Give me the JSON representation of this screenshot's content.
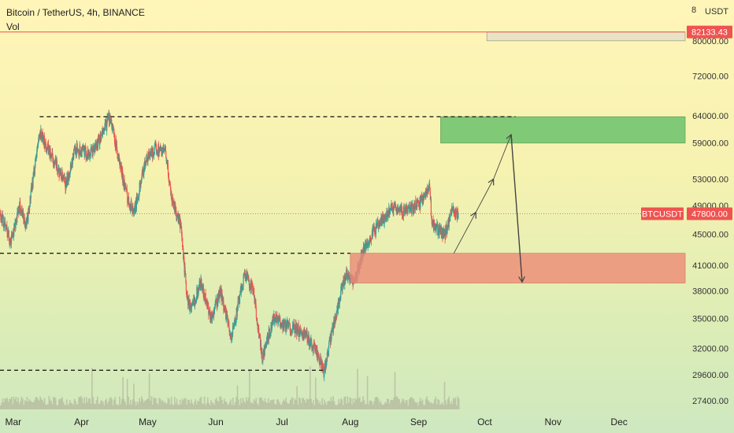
{
  "header": {
    "title": "Bitcoin / TetherUS, 4h, BINANCE",
    "indicator": "Vol"
  },
  "axis": {
    "currency": "USDT",
    "top_partial": "8"
  },
  "colors": {
    "up": "#26a69a",
    "down": "#ef5350",
    "ask_line": "#ef5350",
    "buy_zone": "#6cc26c",
    "sell_zone": "#ee8a78",
    "tag_bg": "#ef5350"
  },
  "tags": {
    "top_price": "82133.43",
    "symbol": "BTCUSDT",
    "last_price": "47800.00"
  },
  "chart_data": {
    "type": "candlestick",
    "title": "Bitcoin / TetherUS, 4h, BINANCE",
    "y_scale": "log",
    "y_ticks": [
      82133.43,
      80000,
      72000,
      64000,
      59000,
      53000,
      49000,
      45000,
      41000,
      38000,
      35000,
      32000,
      29600,
      27400
    ],
    "y_tick_labels": [
      "82133.43",
      "80000.00",
      "72000.00",
      "64000.00",
      "59000.00",
      "53000.00",
      "49000.00",
      "45000.00",
      "41000.00",
      "38000.00",
      "35000.00",
      "32000.00",
      "29600.00",
      "27400.00"
    ],
    "x_ticks": [
      "Mar",
      "Apr",
      "May",
      "Jun",
      "Jul",
      "Aug",
      "Sep",
      "Oct",
      "Nov",
      "Dec"
    ],
    "x_start": "2021-02-23",
    "x_end": "2021-12-31",
    "series": [
      {
        "price_path": [
          [
            "2021-02-23",
            48000
          ],
          [
            "2021-02-28",
            44000
          ],
          [
            "2021-03-04",
            49000
          ],
          [
            "2021-03-07",
            46000
          ],
          [
            "2021-03-13",
            61000
          ],
          [
            "2021-03-18",
            57000
          ],
          [
            "2021-03-25",
            52000
          ],
          [
            "2021-03-29",
            58000
          ],
          [
            "2021-04-05",
            57000
          ],
          [
            "2021-04-10",
            60000
          ],
          [
            "2021-04-14",
            64000
          ],
          [
            "2021-04-18",
            56000
          ],
          [
            "2021-04-22",
            50000
          ],
          [
            "2021-04-25",
            48000
          ],
          [
            "2021-04-30",
            56000
          ],
          [
            "2021-05-05",
            58000
          ],
          [
            "2021-05-09",
            57500
          ],
          [
            "2021-05-12",
            50000
          ],
          [
            "2021-05-16",
            46000
          ],
          [
            "2021-05-19",
            37000
          ],
          [
            "2021-05-21",
            36000
          ],
          [
            "2021-05-25",
            39000
          ],
          [
            "2021-05-30",
            35000
          ],
          [
            "2021-06-03",
            38000
          ],
          [
            "2021-06-08",
            33000
          ],
          [
            "2021-06-14",
            40000
          ],
          [
            "2021-06-18",
            38000
          ],
          [
            "2021-06-22",
            31000
          ],
          [
            "2021-06-27",
            35000
          ],
          [
            "2021-07-01",
            34500
          ],
          [
            "2021-07-06",
            34000
          ],
          [
            "2021-07-11",
            33500
          ],
          [
            "2021-07-16",
            32000
          ],
          [
            "2021-07-20",
            29800
          ],
          [
            "2021-07-25",
            35000
          ],
          [
            "2021-07-30",
            40000
          ],
          [
            "2021-08-03",
            39000
          ],
          [
            "2021-08-07",
            43000
          ],
          [
            "2021-08-12",
            45500
          ],
          [
            "2021-08-16",
            47000
          ],
          [
            "2021-08-21",
            49000
          ],
          [
            "2021-08-25",
            48000
          ],
          [
            "2021-08-29",
            48500
          ],
          [
            "2021-09-02",
            49500
          ],
          [
            "2021-09-06",
            52000
          ],
          [
            "2021-09-07",
            46500
          ],
          [
            "2021-09-10",
            45500
          ],
          [
            "2021-09-13",
            45000
          ],
          [
            "2021-09-16",
            48000
          ],
          [
            "2021-09-19",
            47800
          ]
        ]
      }
    ],
    "levels": [
      {
        "price": 63800,
        "from": "2021-03-13",
        "to": "2021-10-15",
        "style": "dashed"
      },
      {
        "price": 42500,
        "from": "2021-02-23",
        "to": "2021-08-01",
        "style": "dashed"
      },
      {
        "price": 30000,
        "from": "2021-02-23",
        "to": "2021-07-20",
        "style": "dashed"
      }
    ],
    "zones": [
      {
        "name": "buy",
        "from": "2021-09-11",
        "to": "2021-12-31",
        "top": 63800,
        "bottom": 59000
      },
      {
        "name": "sell",
        "from": "2021-08-01",
        "to": "2021-12-31",
        "top": 42500,
        "bottom": 38900
      },
      {
        "name": "target",
        "from": "2021-10-02",
        "to": "2021-12-31",
        "top": 82133.43,
        "bottom": 80000
      }
    ],
    "projection": [
      [
        "2021-09-17",
        42500
      ],
      [
        "2021-09-27",
        48000
      ],
      [
        "2021-10-05",
        53000
      ],
      [
        "2021-10-13",
        60500
      ],
      [
        "2021-10-18",
        39000
      ]
    ],
    "horizontal_line": {
      "price": 82133.43
    }
  }
}
